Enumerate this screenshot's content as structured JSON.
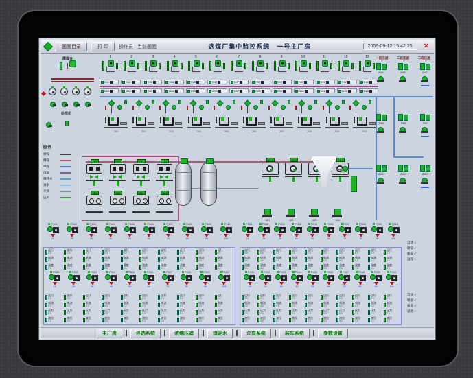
{
  "window": {
    "buttons": [
      "画面目录",
      "打 印"
    ],
    "label_left": "操作员",
    "label_mid": "当前画面",
    "title": "选煤厂集中监控系统　一号主厂房",
    "datetime": "2009-09-12 15:42:25",
    "close": "✕"
  },
  "topleft": {
    "label": "原煤仓",
    "sub": "给煤机"
  },
  "conveyors": {
    "labels": [
      "1",
      "2",
      "3",
      "4",
      "5",
      "6",
      "7",
      "8",
      "9",
      "10",
      "11",
      "12",
      "13"
    ]
  },
  "bus1": {
    "chips": [
      "K01",
      "K02",
      "K03",
      "K04",
      "K05",
      "K06",
      "K07",
      "K08",
      "K09",
      "K10",
      "K11",
      "K12",
      "K13"
    ]
  },
  "bus2": {
    "chips": [
      "D01",
      "D02",
      "D03",
      "D04",
      "D05",
      "D06",
      "D07",
      "D08",
      "D09",
      "D10",
      "D11",
      "D12",
      "D13"
    ]
  },
  "valves": {
    "count": 10
  },
  "machines": {
    "labels": [
      "201",
      "202",
      "203",
      "204",
      "205",
      "206",
      "207",
      "208",
      "209",
      "210"
    ]
  },
  "legend": {
    "title": "图 例",
    "items": [
      {
        "label": "原煤",
        "color": "#404048"
      },
      {
        "label": "精煤",
        "color": "#c05878"
      },
      {
        "label": "中煤",
        "color": "#5878c0"
      },
      {
        "label": "煤泥",
        "color": "#8858a8"
      },
      {
        "label": "循环水",
        "color": "#58a0d8"
      },
      {
        "label": "清水",
        "color": "#88c8e8"
      },
      {
        "label": "介质",
        "color": "#8890a0"
      },
      {
        "label": "压风",
        "color": "#3aa03a"
      }
    ]
  },
  "mid_left": {
    "row1": [
      "LX1",
      "LX2",
      "LX3",
      "LX4"
    ],
    "row2": [
      "301",
      "302",
      "303",
      "304"
    ]
  },
  "mid_right": {
    "row1": [
      "YL1",
      "YL2",
      "YL3",
      "YL4"
    ],
    "row2": [
      "401",
      "402",
      "403",
      "404"
    ]
  },
  "right_section": {
    "headers": [
      "一段压滤",
      "二段压滤",
      "三段压滤"
    ],
    "cells": [
      "6XA",
      "6XB",
      "6XC",
      "7XA",
      "7XB",
      "7XC",
      "8XA",
      "8XB",
      "8XC"
    ]
  },
  "side_notes": {
    "group1": [
      "自动 √",
      "联锁 √",
      "备妥 √",
      "远程 ○"
    ],
    "group2": [
      "自动 √",
      "联锁 √",
      "备妥 √",
      "就地 ○"
    ]
  },
  "banks": {
    "pump_subs": [
      "1#",
      "2#",
      "3#",
      "4#",
      "5#",
      "6#",
      "7#",
      "8#",
      "9#",
      "10#"
    ],
    "b1_left": [
      "P101",
      "P102",
      "P103",
      "P104",
      "P105",
      "P106",
      "P107",
      "P108",
      "P109",
      "P110"
    ],
    "b1_right": [
      "P201",
      "P202",
      "P203",
      "P204",
      "P205",
      "P206",
      "P207",
      "P208",
      "P209",
      "P210"
    ],
    "b2_left": [
      "P301",
      "P302",
      "P303",
      "P304",
      "P305",
      "P306",
      "P307",
      "P308",
      "P309",
      "P310"
    ],
    "b2_right": [
      "P401",
      "P402",
      "P403",
      "P404",
      "P405",
      "P406",
      "P407",
      "P408",
      "P409",
      "P410"
    ],
    "rows_a": [
      {
        "label": "运行",
        "value": "0.0"
      },
      {
        "label": "电流",
        "value": "0.0"
      },
      {
        "label": "温度",
        "value": "0.0"
      }
    ],
    "rows_b": [
      {
        "label": "运行",
        "value": "0.0"
      },
      {
        "label": "电流",
        "value": "0.0"
      },
      {
        "label": "压力",
        "value": "0.0"
      },
      {
        "label": "液位",
        "value": "0.0"
      }
    ]
  },
  "navbar": {
    "buttons": [
      "主厂房",
      "浮选系统",
      "浓缩压滤",
      "煤泥水",
      "介质系统",
      "装车系统",
      "参数设置"
    ]
  }
}
